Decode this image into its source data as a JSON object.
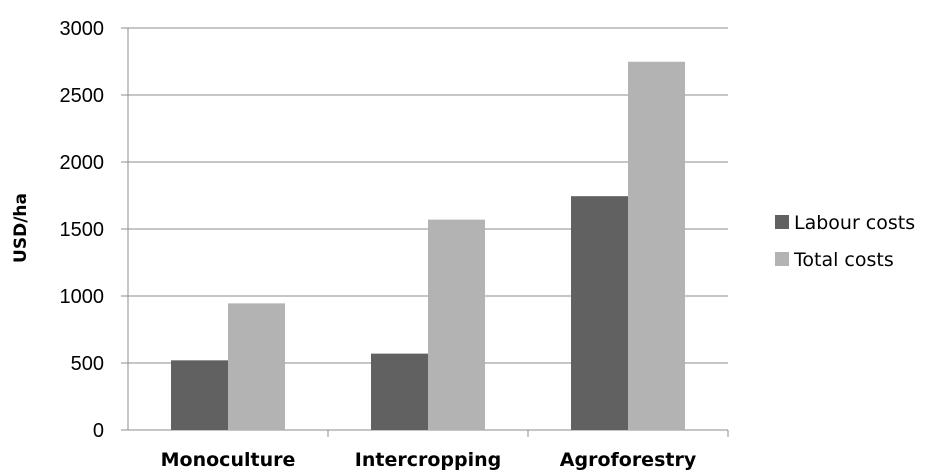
{
  "chart_data": {
    "type": "bar",
    "title": "",
    "xlabel": "",
    "ylabel": "USD/ha",
    "ylim": [
      0,
      3000
    ],
    "yticks": [
      0,
      500,
      1000,
      1500,
      2000,
      2500,
      3000
    ],
    "categories": [
      "Monoculture",
      "Intercropping",
      "Agroforestry"
    ],
    "series": [
      {
        "name": "Labour costs",
        "values": [
          520,
          570,
          1745
        ],
        "color": "#616161"
      },
      {
        "name": "Total costs",
        "values": [
          945,
          1570,
          2748
        ],
        "color": "#b3b3b3"
      }
    ],
    "grid": true,
    "legend_position": "right"
  }
}
